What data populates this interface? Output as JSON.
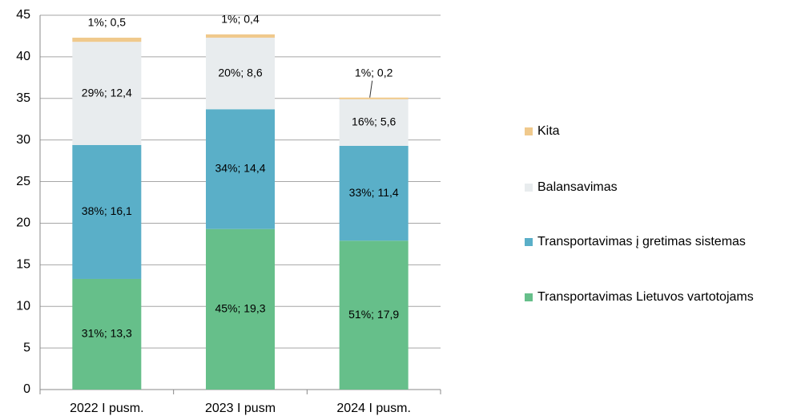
{
  "chart_data": {
    "type": "stacked_bar",
    "categories": [
      "2022 I pusm.",
      "2023 I pusm",
      "2024 I pusm."
    ],
    "series": [
      {
        "name": "Transportavimas Lietuvos vartotojams",
        "color": "#66bf8a",
        "values": [
          13.3,
          19.3,
          17.9
        ],
        "value_labels": [
          "31%; 13,3",
          "45%; 19,3",
          "51%; 17,9"
        ]
      },
      {
        "name": "Transportavimas į gretimas sistemas",
        "color": "#5aafc8",
        "values": [
          16.1,
          14.4,
          11.4
        ],
        "value_labels": [
          "38%; 16,1",
          "34%; 14,4",
          "33%; 11,4"
        ]
      },
      {
        "name": "Balansavimas",
        "color": "#e8ecee",
        "values": [
          12.4,
          8.6,
          5.6
        ],
        "value_labels": [
          "29%; 12,4",
          "20%; 8,6",
          "16%; 5,6"
        ]
      },
      {
        "name": "Kita",
        "color": "#f0c98c",
        "values": [
          0.5,
          0.4,
          0.2
        ],
        "value_labels": [
          "1%; 0,5",
          "1%; 0,4",
          "1%; 0,2"
        ]
      }
    ],
    "ylim": [
      0,
      45
    ],
    "yticks": [
      0,
      5,
      10,
      15,
      20,
      25,
      30,
      35,
      40,
      45
    ],
    "grid": true
  }
}
